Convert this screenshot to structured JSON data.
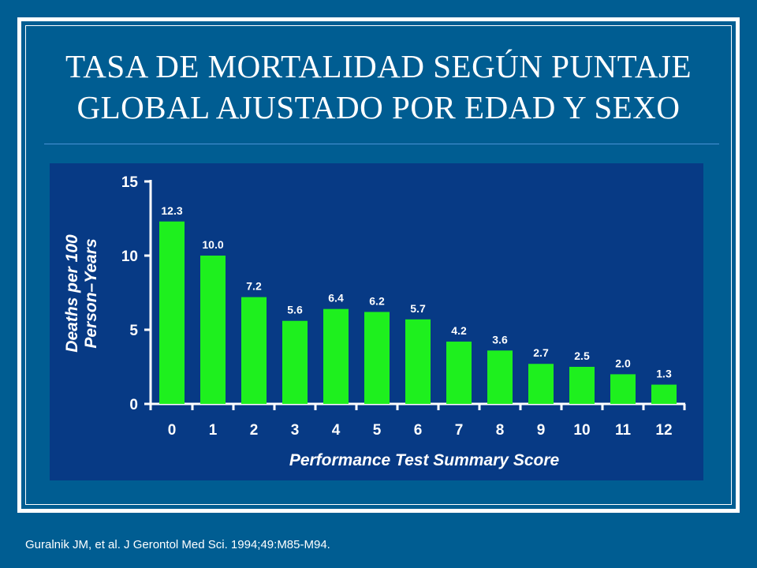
{
  "slide": {
    "title_lines": [
      "Tasa de mortalidad según puntaje",
      "global ajustado por edad y sexo"
    ],
    "citation": "Guralnik JM, et al. J Gerontol Med Sci. 1994;49:M85-M94."
  },
  "colors": {
    "background": "#005d92",
    "chart_panel": "#073a85",
    "bar": "#1ef01e",
    "text": "#ffffff"
  },
  "chart_data": {
    "type": "bar",
    "title": "",
    "xlabel": "Performance Test Summary Score",
    "ylabel_lines": [
      "Deaths per 100",
      "Person–Years"
    ],
    "categories": [
      "0",
      "1",
      "2",
      "3",
      "4",
      "5",
      "6",
      "7",
      "8",
      "9",
      "10",
      "11",
      "12"
    ],
    "values": [
      12.3,
      10.0,
      7.2,
      5.6,
      6.4,
      6.2,
      5.7,
      4.2,
      3.6,
      2.7,
      2.5,
      2.0,
      1.3
    ],
    "value_labels": [
      "12.3",
      "10.0",
      "7.2",
      "5.6",
      "6.4",
      "6.2",
      "5.7",
      "4.2",
      "3.6",
      "2.7",
      "2.5",
      "2.0",
      "1.3"
    ],
    "y_ticks": [
      0,
      5,
      10,
      15
    ],
    "ylim": [
      0,
      15
    ],
    "grid": false,
    "legend": "none"
  }
}
